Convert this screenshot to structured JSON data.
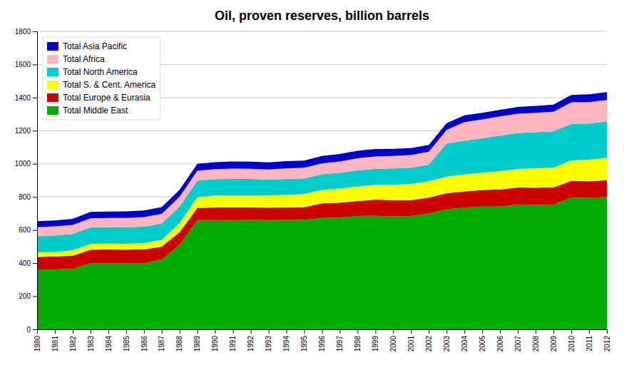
{
  "chart_data": {
    "type": "area",
    "stacked": true,
    "title": "Oil, proven reserves, billion barrels",
    "x": [
      1980,
      1981,
      1982,
      1983,
      1984,
      1985,
      1986,
      1987,
      1988,
      1989,
      1990,
      1991,
      1992,
      1993,
      1994,
      1995,
      1996,
      1997,
      1998,
      1999,
      2000,
      2001,
      2002,
      2003,
      2004,
      2005,
      2006,
      2007,
      2008,
      2009,
      2010,
      2011,
      2012
    ],
    "series": [
      {
        "name": "Total Middle East",
        "color": "#00AA00",
        "values": [
          362,
          362,
          366,
          399,
          399,
          399,
          399,
          422,
          510,
          660,
          660,
          660,
          661,
          660,
          661,
          662,
          673,
          675,
          685,
          686,
          683,
          685,
          700,
          726,
          735,
          742,
          742,
          754,
          752,
          754,
          796,
          795,
          800
        ]
      },
      {
        "name": "Total Europe & Eurasia",
        "color": "#CC0000",
        "values": [
          75,
          78,
          79,
          82,
          83,
          82,
          84,
          78,
          77,
          73,
          76,
          76,
          75,
          75,
          75,
          76,
          88,
          90,
          90,
          98,
          97,
          96,
          96,
          97,
          98,
          100,
          103,
          103,
          104,
          103,
          101,
          100,
          101
        ]
      },
      {
        "name": "Total S. & Cent. America",
        "color": "#FFFF00",
        "values": [
          27,
          27,
          32,
          35,
          36,
          36,
          38,
          40,
          54,
          65,
          72,
          73,
          73,
          73,
          77,
          79,
          81,
          86,
          88,
          89,
          94,
          96,
          99,
          100,
          103,
          104,
          111,
          112,
          117,
          119,
          124,
          130,
          136
        ]
      },
      {
        "name": "Total North America",
        "color": "#00CCCC",
        "values": [
          98,
          100,
          99,
          100,
          100,
          100,
          99,
          100,
          101,
          100,
          100,
          100,
          100,
          96,
          96,
          95,
          95,
          95,
          97,
          97,
          98,
          99,
          100,
          200,
          204,
          208,
          214,
          217,
          218,
          220,
          220,
          218,
          218
        ]
      },
      {
        "name": "Total Africa",
        "color": "#FFB6C1",
        "values": [
          55,
          55,
          55,
          55,
          55,
          56,
          58,
          58,
          59,
          60,
          60,
          62,
          61,
          62,
          63,
          64,
          65,
          68,
          74,
          74,
          75,
          77,
          78,
          82,
          112,
          114,
          116,
          117,
          117,
          119,
          130,
          130,
          130
        ]
      },
      {
        "name": "Total Asia Pacific",
        "color": "#0000CC",
        "values": [
          36,
          36,
          37,
          38,
          39,
          40,
          40,
          41,
          42,
          42,
          42,
          43,
          43,
          43,
          44,
          44,
          45,
          45,
          45,
          45,
          44,
          42,
          41,
          41,
          41,
          40,
          40,
          41,
          42,
          42,
          45,
          47,
          48
        ]
      }
    ],
    "xlim": [
      1980,
      2012
    ],
    "xticks": [
      1980,
      1981,
      1982,
      1983,
      1984,
      1985,
      1986,
      1987,
      1988,
      1989,
      1990,
      1991,
      1992,
      1993,
      1994,
      1995,
      1996,
      1997,
      1998,
      1999,
      2000,
      2001,
      2002,
      2003,
      2004,
      2005,
      2006,
      2007,
      2008,
      2009,
      2010,
      2011,
      2012
    ],
    "ylim": [
      0,
      1800
    ],
    "yticks": [
      0,
      200,
      400,
      600,
      800,
      1000,
      1200,
      1400,
      1600,
      1800
    ],
    "grid": true,
    "legend": "top-left"
  }
}
